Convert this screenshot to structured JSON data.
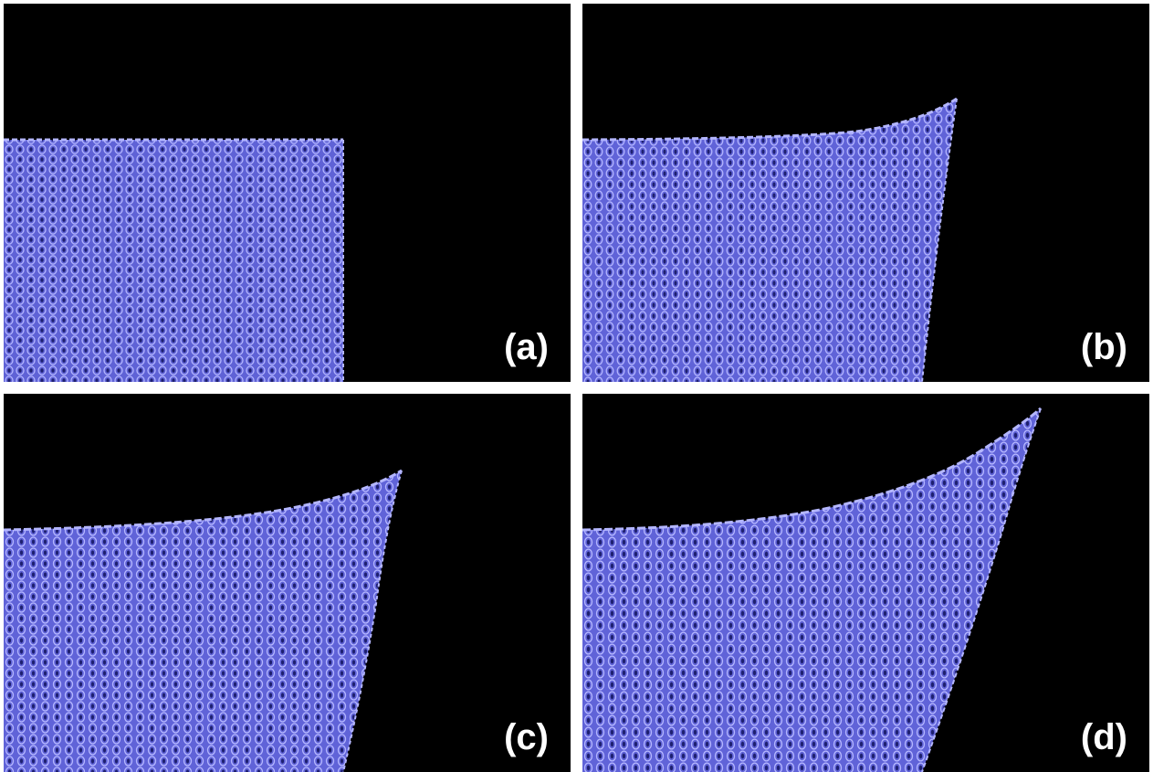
{
  "panels": [
    {
      "id": "a",
      "label": "(a)"
    },
    {
      "id": "b",
      "label": "(b)"
    },
    {
      "id": "c",
      "label": "(c)"
    },
    {
      "id": "d",
      "label": "(d)"
    }
  ],
  "colors": {
    "background": "#000000",
    "fabric": "#6f72e6",
    "fabric_light": "#a9abff",
    "fabric_dark": "#2a2c8a",
    "label": "#ffffff",
    "separator": "#ffffff"
  }
}
